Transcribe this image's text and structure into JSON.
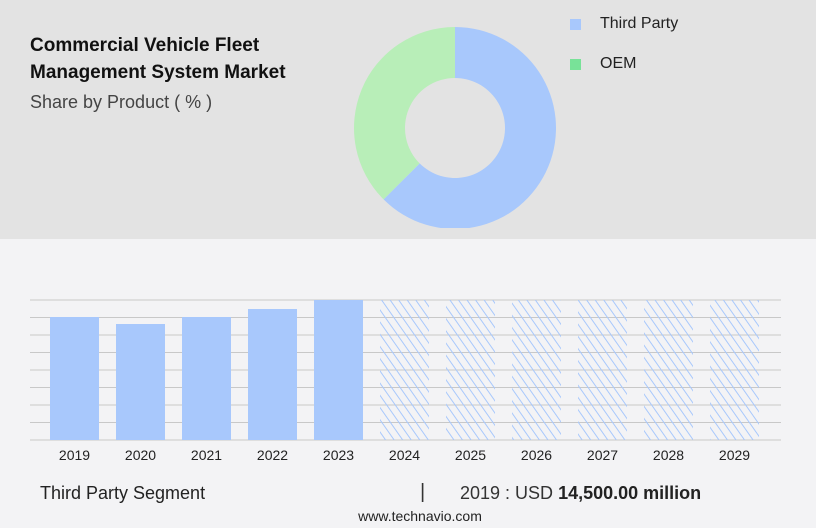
{
  "title_line1": "Commercial Vehicle Fleet",
  "title_line2": "Management System Market",
  "subtitle": "Share by Product ( % )",
  "colors": {
    "third_party": "#a8c8fc",
    "oem_pie": "#b8eeb8",
    "oem_legend": "#78e298",
    "grid": "#c8c8c8"
  },
  "chart_data": [
    {
      "type": "pie",
      "donut": true,
      "labels": [
        "Third Party",
        "OEM"
      ],
      "values": [
        62.5,
        37.5
      ]
    },
    {
      "type": "bar",
      "categories": [
        "2019",
        "2020",
        "2021",
        "2022",
        "2023",
        "2024",
        "2025",
        "2026",
        "2027",
        "2028",
        "2029"
      ],
      "values": [
        14500,
        13675,
        14500,
        15443,
        16504,
        null,
        null,
        null,
        null,
        null,
        null
      ],
      "forecast_categories": [
        "2024",
        "2025",
        "2026",
        "2027",
        "2028",
        "2029"
      ],
      "forecast_style": "hatched",
      "grid": true
    }
  ],
  "footer": {
    "segment": "Third Party Segment",
    "separator": "|",
    "value_prefix": "2019 : USD ",
    "value_bold": "14,500.00 million",
    "url": "www.technavio.com"
  }
}
